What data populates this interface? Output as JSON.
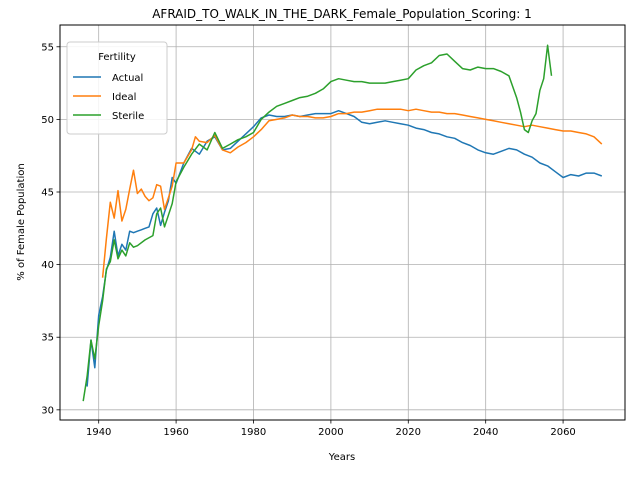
{
  "chart_data": {
    "type": "line",
    "title": "AFRAID_TO_WALK_IN_THE_DARK_Female_Population_Scoring: 1",
    "xlabel": "Years",
    "ylabel": "% of Female Population",
    "xlim": [
      1930,
      2076
    ],
    "ylim": [
      29.3,
      56.5
    ],
    "xticks": [
      1940,
      1960,
      1980,
      2000,
      2020,
      2040,
      2060
    ],
    "yticks": [
      30,
      35,
      40,
      45,
      50,
      55
    ],
    "grid": true,
    "legend": {
      "title": "Fertility",
      "placement": "top-left"
    },
    "series": [
      {
        "name": "Actual",
        "color": "#1f77b4",
        "x": [
          1937,
          1938,
          1939,
          1940,
          1941,
          1942,
          1943,
          1944,
          1945,
          1946,
          1947,
          1948,
          1949,
          1950,
          1951,
          1952,
          1953,
          1954,
          1955,
          1956,
          1957,
          1958,
          1959,
          1960,
          1962,
          1964,
          1966,
          1968,
          1970,
          1972,
          1974,
          1976,
          1978,
          1980,
          1982,
          1984,
          1986,
          1988,
          1990,
          1992,
          1994,
          1996,
          1998,
          2000,
          2002,
          2004,
          2006,
          2008,
          2010,
          2012,
          2014,
          2016,
          2018,
          2020,
          2022,
          2024,
          2026,
          2028,
          2030,
          2032,
          2034,
          2036,
          2038,
          2040,
          2042,
          2044,
          2046,
          2048,
          2050,
          2052,
          2054,
          2056,
          2058,
          2060,
          2062,
          2064,
          2066,
          2068,
          2070
        ],
        "values": [
          31.6,
          34.8,
          32.9,
          36.5,
          37.8,
          39.6,
          40.5,
          42.3,
          40.6,
          41.4,
          41.0,
          42.3,
          42.2,
          42.3,
          42.4,
          42.5,
          42.6,
          43.5,
          43.9,
          42.7,
          43.6,
          44.4,
          46.0,
          45.6,
          47.0,
          48.0,
          47.6,
          48.5,
          48.8,
          47.9,
          48.0,
          48.5,
          49.0,
          49.5,
          50.1,
          50.3,
          50.2,
          50.2,
          50.3,
          50.2,
          50.3,
          50.4,
          50.4,
          50.4,
          50.6,
          50.4,
          50.2,
          49.8,
          49.7,
          49.8,
          49.9,
          49.8,
          49.7,
          49.6,
          49.4,
          49.3,
          49.1,
          49.0,
          48.8,
          48.7,
          48.4,
          48.2,
          47.9,
          47.7,
          47.6,
          47.8,
          48.0,
          47.9,
          47.6,
          47.4,
          47.0,
          46.8,
          46.4,
          46.0,
          46.2,
          46.1,
          46.3,
          46.3,
          46.1
        ]
      },
      {
        "name": "Ideal",
        "color": "#ff7f0e",
        "x": [
          1941,
          1942,
          1943,
          1944,
          1945,
          1946,
          1947,
          1948,
          1949,
          1950,
          1951,
          1952,
          1953,
          1954,
          1955,
          1956,
          1957,
          1958,
          1959,
          1960,
          1962,
          1964,
          1965,
          1966,
          1968,
          1970,
          1972,
          1974,
          1976,
          1978,
          1980,
          1982,
          1984,
          1986,
          1988,
          1990,
          1992,
          1994,
          1996,
          1998,
          2000,
          2002,
          2004,
          2006,
          2008,
          2010,
          2012,
          2014,
          2016,
          2018,
          2020,
          2022,
          2024,
          2026,
          2028,
          2030,
          2032,
          2034,
          2036,
          2038,
          2040,
          2042,
          2044,
          2046,
          2048,
          2050,
          2052,
          2054,
          2056,
          2058,
          2060,
          2062,
          2064,
          2066,
          2068,
          2070
        ],
        "values": [
          39.1,
          41.8,
          44.3,
          43.2,
          45.1,
          43.0,
          43.8,
          45.2,
          46.5,
          44.9,
          45.2,
          44.7,
          44.4,
          44.6,
          45.5,
          45.4,
          43.8,
          44.6,
          45.4,
          47.0,
          47.0,
          47.9,
          48.8,
          48.5,
          48.4,
          48.9,
          47.9,
          47.7,
          48.1,
          48.4,
          48.8,
          49.3,
          49.9,
          50.0,
          50.1,
          50.3,
          50.2,
          50.2,
          50.1,
          50.1,
          50.2,
          50.4,
          50.4,
          50.5,
          50.5,
          50.6,
          50.7,
          50.7,
          50.7,
          50.7,
          50.6,
          50.7,
          50.6,
          50.5,
          50.5,
          50.4,
          50.4,
          50.3,
          50.2,
          50.1,
          50.0,
          49.9,
          49.8,
          49.7,
          49.6,
          49.5,
          49.6,
          49.5,
          49.4,
          49.3,
          49.2,
          49.2,
          49.1,
          49.0,
          48.8,
          48.3
        ]
      },
      {
        "name": "Sterile",
        "color": "#2ca02c",
        "x": [
          1936,
          1937,
          1938,
          1939,
          1940,
          1941,
          1942,
          1943,
          1944,
          1945,
          1946,
          1947,
          1948,
          1949,
          1950,
          1952,
          1954,
          1955,
          1956,
          1957,
          1958,
          1959,
          1960,
          1962,
          1964,
          1966,
          1968,
          1970,
          1972,
          1974,
          1976,
          1978,
          1980,
          1982,
          1984,
          1986,
          1988,
          1990,
          1992,
          1994,
          1996,
          1998,
          2000,
          2002,
          2004,
          2006,
          2008,
          2010,
          2012,
          2014,
          2016,
          2018,
          2020,
          2022,
          2024,
          2026,
          2028,
          2030,
          2032,
          2034,
          2036,
          2038,
          2040,
          2042,
          2044,
          2046,
          2048,
          2049,
          2050,
          2051,
          2052,
          2053,
          2054,
          2055,
          2056,
          2057
        ],
        "values": [
          30.6,
          32.3,
          34.8,
          33.5,
          35.8,
          37.5,
          39.7,
          40.2,
          41.7,
          40.4,
          41.0,
          40.6,
          41.5,
          41.2,
          41.3,
          41.7,
          42.0,
          43.5,
          43.9,
          42.6,
          43.4,
          44.2,
          45.7,
          46.7,
          47.6,
          48.3,
          47.9,
          49.1,
          48.0,
          48.3,
          48.6,
          48.8,
          49.1,
          50.0,
          50.5,
          50.9,
          51.1,
          51.3,
          51.5,
          51.6,
          51.8,
          52.1,
          52.6,
          52.8,
          52.7,
          52.6,
          52.6,
          52.5,
          52.5,
          52.5,
          52.6,
          52.7,
          52.8,
          53.4,
          53.7,
          53.9,
          54.4,
          54.5,
          54.0,
          53.5,
          53.4,
          53.6,
          53.5,
          53.5,
          53.3,
          53.0,
          51.5,
          50.5,
          49.3,
          49.1,
          49.9,
          50.4,
          52.0,
          52.8,
          55.1,
          53.0
        ]
      }
    ]
  }
}
